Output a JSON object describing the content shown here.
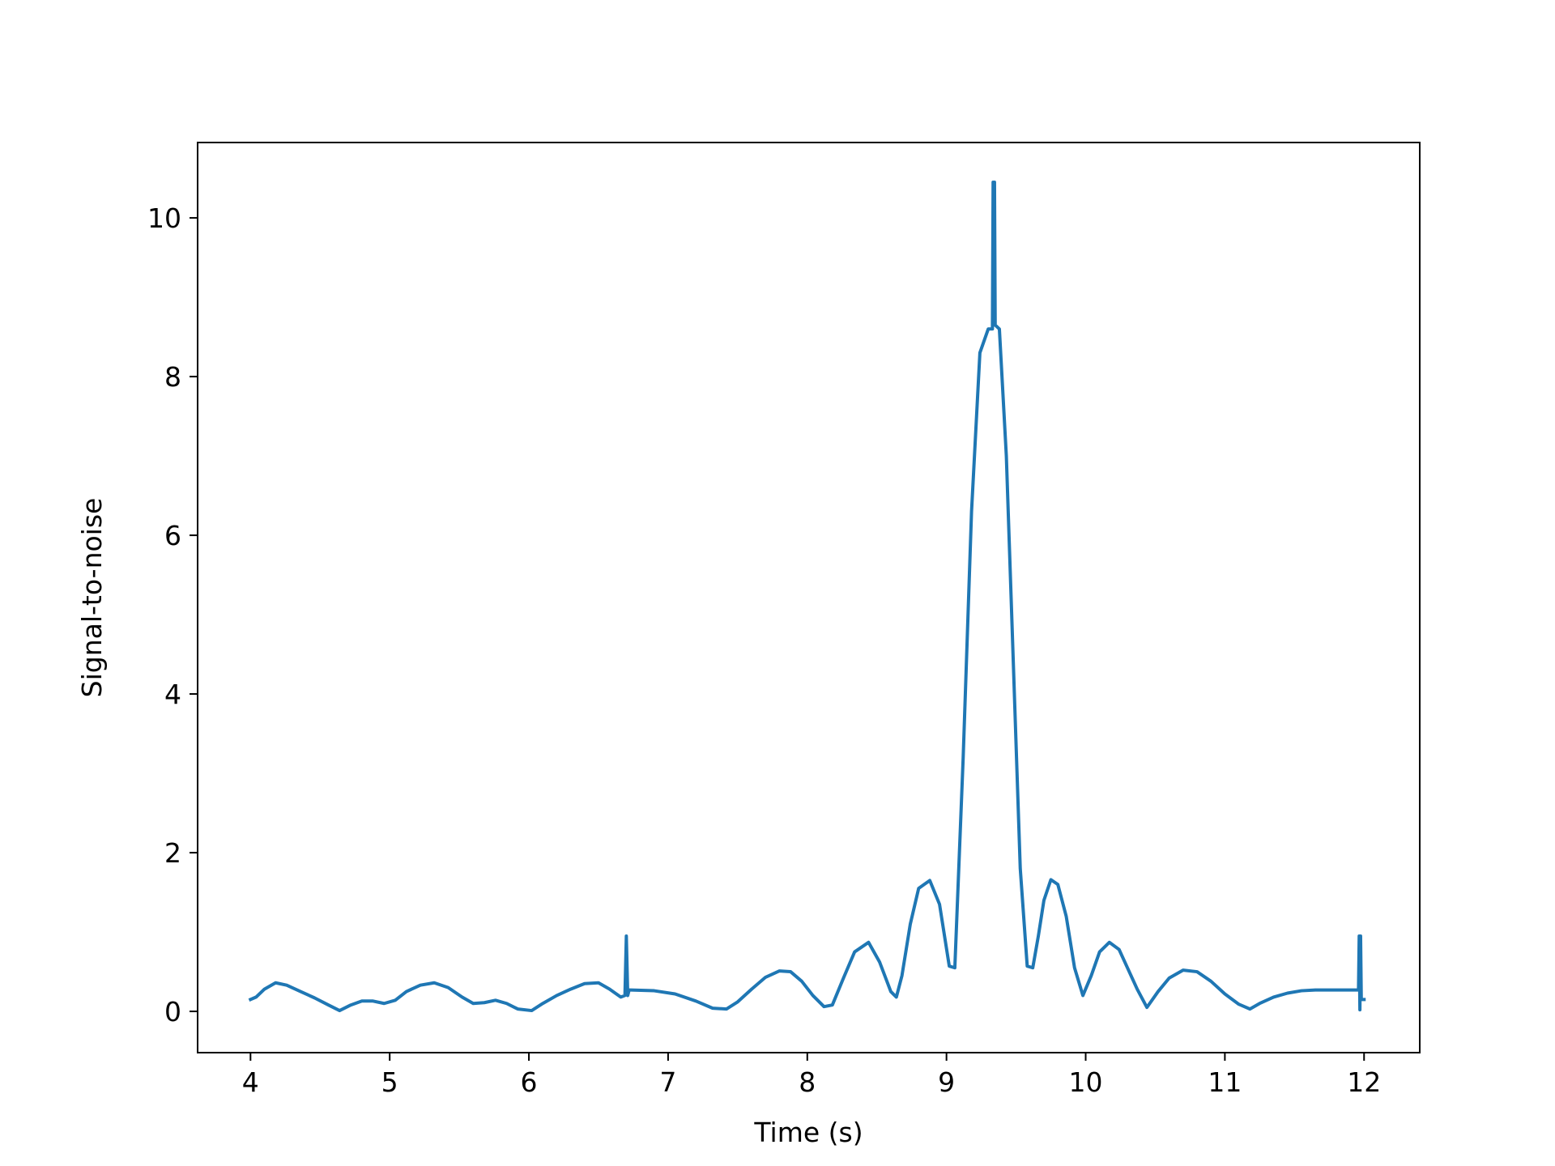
{
  "chart_data": {
    "type": "line",
    "title": "",
    "xlabel": "Time (s)",
    "ylabel": "Signal-to-noise",
    "xlim": [
      3.62,
      12.4
    ],
    "ylim": [
      -0.52,
      10.95
    ],
    "xticks": [
      4,
      5,
      6,
      7,
      8,
      9,
      10,
      11,
      12
    ],
    "xtick_labels": [
      "4",
      "5",
      "6",
      "7",
      "8",
      "9",
      "10",
      "11",
      "12"
    ],
    "yticks": [
      0,
      2,
      4,
      6,
      8,
      10
    ],
    "ytick_labels": [
      "0",
      "2",
      "4",
      "6",
      "8",
      "10"
    ],
    "grid": false,
    "legend": "none",
    "series": [
      {
        "color": "#1f77b4",
        "x": [
          4.0,
          4.04,
          4.1,
          4.18,
          4.26,
          4.36,
          4.46,
          4.56,
          4.64,
          4.72,
          4.8,
          4.88,
          4.96,
          5.04,
          5.12,
          5.22,
          5.32,
          5.42,
          5.52,
          5.6,
          5.68,
          5.76,
          5.84,
          5.92,
          6.02,
          6.1,
          6.2,
          6.3,
          6.4,
          6.5,
          6.58,
          6.66,
          6.69,
          6.7,
          6.71,
          6.72,
          6.73,
          6.9,
          7.05,
          7.2,
          7.32,
          7.42,
          7.5,
          7.6,
          7.7,
          7.8,
          7.88,
          7.96,
          8.04,
          8.12,
          8.18,
          8.26,
          8.34,
          8.44,
          8.52,
          8.6,
          8.64,
          8.68,
          8.74,
          8.8,
          8.88,
          8.95,
          9.02,
          9.06,
          9.12,
          9.18,
          9.24,
          9.3,
          9.33,
          9.335,
          9.34,
          9.345,
          9.35,
          9.38,
          9.43,
          9.48,
          9.53,
          9.58,
          9.62,
          9.66,
          9.7,
          9.75,
          9.8,
          9.86,
          9.92,
          9.98,
          10.04,
          10.1,
          10.17,
          10.24,
          10.3,
          10.37,
          10.44,
          10.52,
          10.6,
          10.7,
          10.8,
          10.9,
          11.0,
          11.1,
          11.18,
          11.25,
          11.35,
          11.45,
          11.55,
          11.65,
          11.8,
          11.94,
          11.96,
          11.965,
          11.97,
          11.975,
          11.98,
          12.0
        ],
        "y": [
          0.15,
          0.18,
          0.28,
          0.36,
          0.33,
          0.25,
          0.17,
          0.08,
          0.01,
          0.08,
          0.13,
          0.13,
          0.1,
          0.14,
          0.25,
          0.33,
          0.36,
          0.3,
          0.18,
          0.1,
          0.11,
          0.14,
          0.1,
          0.03,
          0.01,
          0.1,
          0.2,
          0.28,
          0.35,
          0.36,
          0.28,
          0.18,
          0.2,
          0.95,
          0.2,
          0.27,
          0.27,
          0.26,
          0.22,
          0.13,
          0.04,
          0.03,
          0.12,
          0.28,
          0.43,
          0.51,
          0.5,
          0.38,
          0.2,
          0.06,
          0.08,
          0.42,
          0.75,
          0.87,
          0.62,
          0.25,
          0.18,
          0.45,
          1.1,
          1.55,
          1.65,
          1.35,
          0.57,
          0.55,
          3.2,
          6.3,
          8.3,
          8.6,
          8.6,
          10.45,
          8.65,
          10.45,
          8.65,
          8.6,
          7.0,
          4.4,
          1.8,
          0.57,
          0.55,
          0.95,
          1.4,
          1.66,
          1.6,
          1.2,
          0.55,
          0.2,
          0.45,
          0.75,
          0.87,
          0.78,
          0.55,
          0.28,
          0.05,
          0.25,
          0.42,
          0.52,
          0.5,
          0.38,
          0.22,
          0.09,
          0.03,
          0.1,
          0.18,
          0.23,
          0.26,
          0.27,
          0.27,
          0.27,
          0.27,
          0.95,
          0.02,
          0.95,
          0.15,
          0.15
        ]
      }
    ]
  }
}
